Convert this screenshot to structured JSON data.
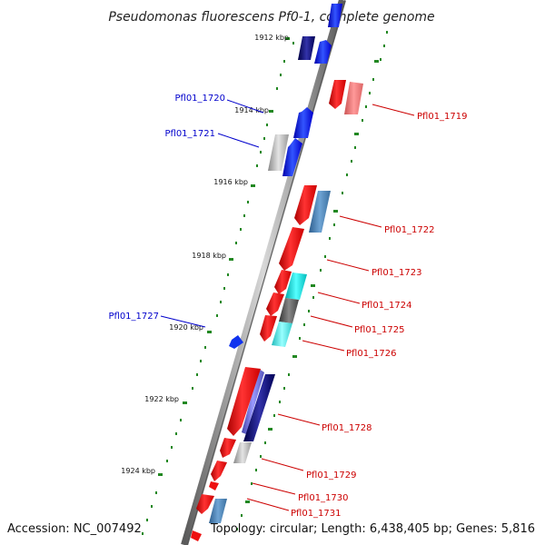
{
  "title": "Pseudomonas fluorescens Pf0-1, complete genome",
  "footer": {
    "accession": "Accession: NC_007492",
    "info": "Topology: circular; Length: 6,438,405 bp; Genes: 5,816"
  },
  "ticks": [
    "1912 kbp",
    "1914 kbp",
    "1916 kbp",
    "1918 kbp",
    "1920 kbp",
    "1922 kbp",
    "1924 kbp"
  ],
  "genes_left": [
    "Pfl01_1720",
    "Pfl01_1721",
    "Pfl01_1727"
  ],
  "genes_right": [
    "Pfl01_1719",
    "Pfl01_1722",
    "Pfl01_1723",
    "Pfl01_1724",
    "Pfl01_1725",
    "Pfl01_1726",
    "Pfl01_1728",
    "Pfl01_1729",
    "Pfl01_1730",
    "Pfl01_1731"
  ],
  "colors": {
    "forward_strand": "#0000ff",
    "reverse_strand": "#ff0000",
    "left_label": "#0000cc",
    "right_label": "#cc0000",
    "tick": "#228822"
  }
}
